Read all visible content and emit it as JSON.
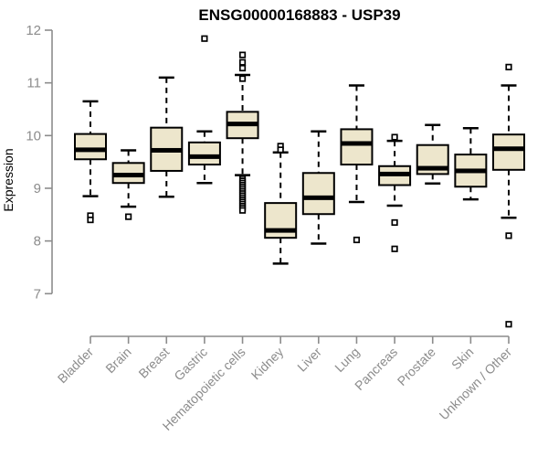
{
  "chart_data": {
    "type": "boxplot",
    "title": "ENSG00000168883 - USP39",
    "xlabel": "",
    "ylabel": "Expression",
    "ylim": [
      7,
      12
    ],
    "yticks": [
      7,
      8,
      9,
      10,
      11,
      12
    ],
    "grid": false,
    "legend": false,
    "categories": [
      "Bladder",
      "Brain",
      "Breast",
      "Gastric",
      "Hematopoietic cells",
      "Kidney",
      "Liver",
      "Lung",
      "Pancreas",
      "Prostate",
      "Skin",
      "Unknown / Other"
    ],
    "series": [
      {
        "category": "Bladder",
        "whisker_low": 8.85,
        "q1": 9.55,
        "median": 9.73,
        "q3": 10.03,
        "whisker_high": 10.65,
        "outliers": [
          8.48,
          8.4
        ]
      },
      {
        "category": "Brain",
        "whisker_low": 8.65,
        "q1": 9.1,
        "median": 9.25,
        "q3": 9.48,
        "whisker_high": 9.72,
        "outliers": [
          8.46
        ]
      },
      {
        "category": "Breast",
        "whisker_low": 8.84,
        "q1": 9.33,
        "median": 9.72,
        "q3": 10.15,
        "whisker_high": 11.1,
        "outliers": []
      },
      {
        "category": "Gastric",
        "whisker_low": 9.1,
        "q1": 9.45,
        "median": 9.6,
        "q3": 9.87,
        "whisker_high": 10.08,
        "outliers": [
          11.84
        ]
      },
      {
        "category": "Hematopoietic cells",
        "whisker_low": 9.25,
        "q1": 9.95,
        "median": 10.22,
        "q3": 10.45,
        "whisker_high": 11.15,
        "outliers": [
          11.53,
          11.39,
          11.28,
          11.08,
          9.18,
          9.14,
          9.1,
          9.06,
          9.02,
          8.98,
          8.94,
          8.9,
          8.86,
          8.82,
          8.78,
          8.74,
          8.7,
          8.66,
          8.62,
          8.58
        ]
      },
      {
        "category": "Kidney",
        "whisker_low": 7.57,
        "q1": 8.06,
        "median": 8.2,
        "q3": 8.72,
        "whisker_high": 9.68,
        "outliers": [
          9.8,
          9.73
        ]
      },
      {
        "category": "Liver",
        "whisker_low": 7.95,
        "q1": 8.51,
        "median": 8.82,
        "q3": 9.29,
        "whisker_high": 10.08,
        "outliers": []
      },
      {
        "category": "Lung",
        "whisker_low": 8.74,
        "q1": 9.45,
        "median": 9.85,
        "q3": 10.12,
        "whisker_high": 10.95,
        "outliers": [
          8.02
        ]
      },
      {
        "category": "Pancreas",
        "whisker_low": 8.67,
        "q1": 9.06,
        "median": 9.27,
        "q3": 9.42,
        "whisker_high": 9.9,
        "outliers": [
          9.97,
          8.35,
          7.85
        ]
      },
      {
        "category": "Prostate",
        "whisker_low": 9.09,
        "q1": 9.27,
        "median": 9.38,
        "q3": 9.82,
        "whisker_high": 10.2,
        "outliers": []
      },
      {
        "category": "Skin",
        "whisker_low": 8.79,
        "q1": 9.03,
        "median": 9.33,
        "q3": 9.64,
        "whisker_high": 10.14,
        "outliers": []
      },
      {
        "category": "Unknown / Other",
        "whisker_low": 8.44,
        "q1": 9.35,
        "median": 9.75,
        "q3": 10.02,
        "whisker_high": 10.95,
        "outliers": [
          11.3,
          8.1,
          6.42
        ]
      }
    ],
    "style": {
      "box_fill": "#EDE6CC",
      "box_stroke": "#000000",
      "median_color": "#000000",
      "whisker_color": "#000000",
      "outlier_color": "#000000",
      "axis_color": "#8C8C8C",
      "tick_label_color": "#8C8C8C",
      "title_color": "#000000",
      "background": "#FFFFFF"
    }
  }
}
